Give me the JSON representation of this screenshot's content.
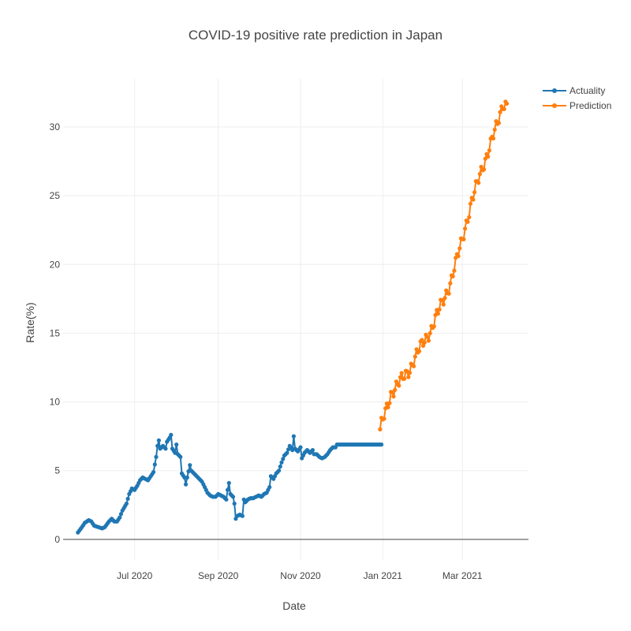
{
  "chart_data": {
    "type": "line",
    "title": "COVID-19 positive rate prediction in Japan",
    "xlabel": "Date",
    "ylabel": "Rate(%)",
    "x_ticks": [
      {
        "date": "2020-07-01",
        "label": "Jul 2020"
      },
      {
        "date": "2020-09-01",
        "label": "Sep 2020"
      },
      {
        "date": "2020-11-01",
        "label": "Nov 2020"
      },
      {
        "date": "2021-01-01",
        "label": "Jan 2021"
      },
      {
        "date": "2021-03-01",
        "label": "Mar 2021"
      }
    ],
    "x_range": [
      "2020-05-09",
      "2021-04-19"
    ],
    "y_ticks": [
      0,
      5,
      10,
      15,
      20,
      25,
      30
    ],
    "ylim": [
      -1.5,
      33.5
    ],
    "grid": true,
    "legend_position": "top-right",
    "series": [
      {
        "name": "Actuality",
        "color": "#1f77b4",
        "start_date": "2020-05-20",
        "end_date": "2020-12-31",
        "anchors": [
          [
            0,
            0.5
          ],
          [
            3,
            0.9
          ],
          [
            5,
            1.2
          ],
          [
            8,
            1.4
          ],
          [
            10,
            1.3
          ],
          [
            12,
            1.0
          ],
          [
            15,
            0.9
          ],
          [
            18,
            0.8
          ],
          [
            20,
            0.9
          ],
          [
            23,
            1.3
          ],
          [
            25,
            1.5
          ],
          [
            27,
            1.3
          ],
          [
            29,
            1.3
          ],
          [
            31,
            1.6
          ],
          [
            33,
            2.1
          ],
          [
            36,
            2.6
          ],
          [
            38,
            3.3
          ],
          [
            40,
            3.7
          ],
          [
            42,
            3.6
          ],
          [
            44,
            3.9
          ],
          [
            46,
            4.3
          ],
          [
            48,
            4.5
          ],
          [
            50,
            4.4
          ],
          [
            52,
            4.3
          ],
          [
            54,
            4.6
          ],
          [
            56,
            4.9
          ],
          [
            58,
            6.0
          ],
          [
            59,
            6.8
          ],
          [
            60,
            7.2
          ],
          [
            61,
            6.6
          ],
          [
            63,
            6.8
          ],
          [
            65,
            6.6
          ],
          [
            66,
            7.1
          ],
          [
            68,
            7.4
          ],
          [
            69,
            7.6
          ],
          [
            70,
            6.6
          ],
          [
            72,
            6.3
          ],
          [
            73,
            6.9
          ],
          [
            74,
            6.2
          ],
          [
            76,
            6.0
          ],
          [
            77,
            4.8
          ],
          [
            79,
            4.5
          ],
          [
            80,
            4.0
          ],
          [
            81,
            4.5
          ],
          [
            83,
            5.4
          ],
          [
            84,
            5.0
          ],
          [
            86,
            4.8
          ],
          [
            88,
            4.6
          ],
          [
            90,
            4.4
          ],
          [
            92,
            4.2
          ],
          [
            94,
            3.8
          ],
          [
            96,
            3.4
          ],
          [
            98,
            3.2
          ],
          [
            100,
            3.1
          ],
          [
            102,
            3.1
          ],
          [
            104,
            3.3
          ],
          [
            106,
            3.2
          ],
          [
            108,
            3.1
          ],
          [
            110,
            2.9
          ],
          [
            111,
            3.6
          ],
          [
            112,
            4.1
          ],
          [
            113,
            3.3
          ],
          [
            115,
            3.1
          ],
          [
            116,
            2.6
          ],
          [
            117,
            1.5
          ],
          [
            118,
            1.7
          ],
          [
            120,
            1.8
          ],
          [
            122,
            1.7
          ],
          [
            123,
            2.9
          ],
          [
            124,
            2.7
          ],
          [
            126,
            2.9
          ],
          [
            128,
            3.0
          ],
          [
            130,
            3.0
          ],
          [
            132,
            3.1
          ],
          [
            134,
            3.2
          ],
          [
            136,
            3.1
          ],
          [
            138,
            3.3
          ],
          [
            140,
            3.4
          ],
          [
            142,
            3.8
          ],
          [
            143,
            4.6
          ],
          [
            145,
            4.4
          ],
          [
            147,
            4.8
          ],
          [
            149,
            5.0
          ],
          [
            151,
            5.6
          ],
          [
            153,
            6.1
          ],
          [
            155,
            6.3
          ],
          [
            157,
            6.8
          ],
          [
            159,
            6.5
          ],
          [
            160,
            7.5
          ],
          [
            161,
            6.6
          ],
          [
            163,
            6.4
          ],
          [
            165,
            6.7
          ],
          [
            166,
            5.9
          ],
          [
            168,
            6.3
          ],
          [
            170,
            6.5
          ],
          [
            172,
            6.3
          ],
          [
            174,
            6.5
          ],
          [
            175,
            6.2
          ],
          [
            177,
            6.2
          ],
          [
            179,
            6.0
          ],
          [
            181,
            5.9
          ],
          [
            183,
            6.0
          ],
          [
            185,
            6.2
          ],
          [
            187,
            6.5
          ],
          [
            189,
            6.7
          ],
          [
            191,
            6.7
          ],
          [
            192,
            6.9
          ],
          [
            225,
            6.9
          ]
        ]
      },
      {
        "name": "Prediction",
        "color": "#ff7f0e",
        "start_date": "2020-12-30",
        "end_date": "2021-04-03",
        "anchors": [
          [
            0,
            8.0
          ],
          [
            8,
            10.6
          ],
          [
            15,
            11.5
          ],
          [
            22,
            12.4
          ],
          [
            30,
            14.0
          ],
          [
            38,
            15.3
          ],
          [
            45,
            17.0
          ],
          [
            52,
            18.6
          ],
          [
            60,
            21.5
          ],
          [
            68,
            24.6
          ],
          [
            75,
            26.8
          ],
          [
            82,
            28.8
          ],
          [
            87,
            30.2
          ],
          [
            91,
            31.7
          ]
        ],
        "amp": 0.35
      }
    ]
  }
}
